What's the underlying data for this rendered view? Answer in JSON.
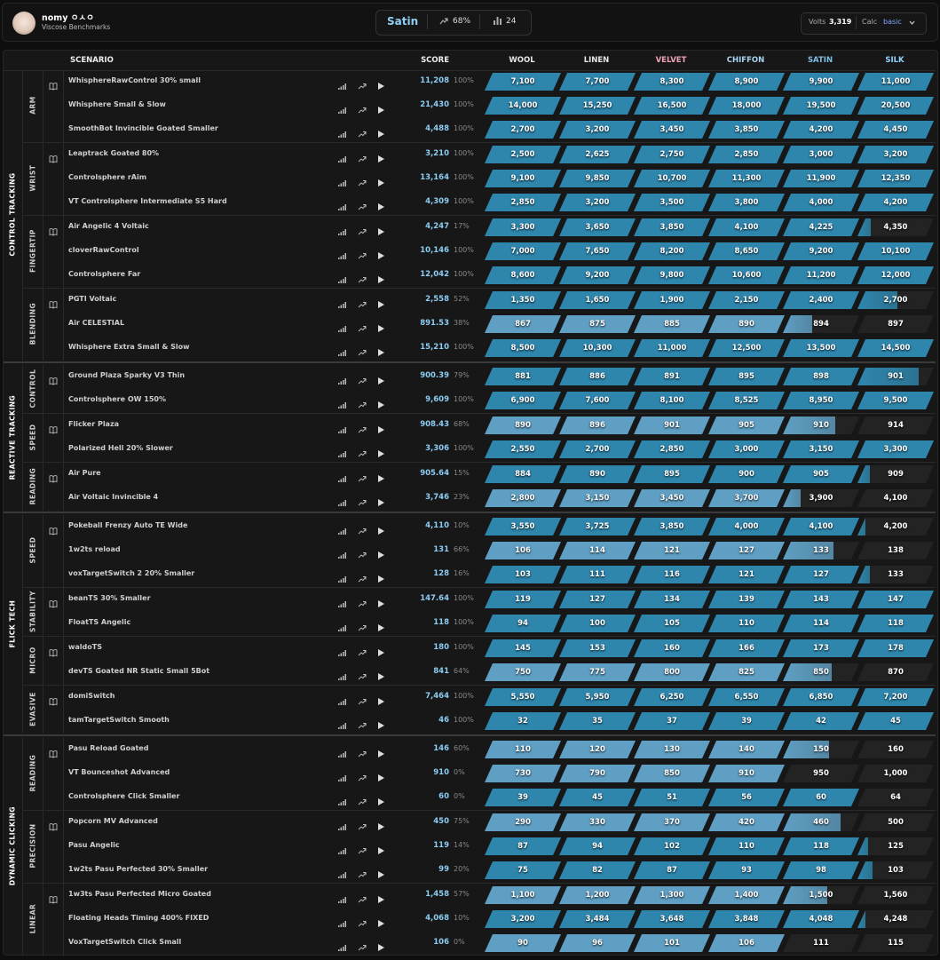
{
  "header": {
    "user_name": "nomy ㅇㅅㅇ",
    "subtitle": "Viscose Benchmarks",
    "rank": "Satin",
    "progress": "68%",
    "count": "24",
    "volts_label": "Volts",
    "volts": "3,319",
    "calc_label": "Calc",
    "calc": "basic"
  },
  "table": {
    "columns": {
      "scenario": "SCENARIO",
      "score": "SCORE"
    },
    "ranks": [
      {
        "name": "WOOL",
        "color": "#e8e8e8"
      },
      {
        "name": "LINEN",
        "color": "#e8e8e8"
      },
      {
        "name": "VELVET",
        "color": "#f0a3b4"
      },
      {
        "name": "CHIFFON",
        "color": "#a9d6f2"
      },
      {
        "name": "SATIN",
        "color": "#7fbde6"
      },
      {
        "name": "SILK",
        "color": "#93d4ff"
      }
    ],
    "cell_colors": [
      "#5f9fc3",
      "#5f9fc3",
      "#5f9fc3",
      "#5f9fc3",
      "#2e86ad",
      "#2e86ad"
    ],
    "categories": [
      {
        "name": "CONTROL TRACKING",
        "groups": [
          {
            "name": "ARM",
            "rows": [
              {
                "name": "WhisphereRawControl 30% small",
                "score": "11,208",
                "progress": "100%",
                "thresholds": [
                  "7,100",
                  "7,700",
                  "8,300",
                  "8,900",
                  "9,900",
                  "11,000"
                ]
              },
              {
                "name": "Whisphere Small & Slow",
                "score": "21,430",
                "progress": "100%",
                "thresholds": [
                  "14,000",
                  "15,250",
                  "16,500",
                  "18,000",
                  "19,500",
                  "20,500"
                ]
              },
              {
                "name": "SmoothBot Invincible Goated Smaller",
                "score": "4,488",
                "progress": "100%",
                "thresholds": [
                  "2,700",
                  "3,200",
                  "3,450",
                  "3,850",
                  "4,200",
                  "4,450"
                ]
              }
            ]
          },
          {
            "name": "WRIST",
            "rows": [
              {
                "name": "Leaptrack Goated 80%",
                "score": "3,210",
                "progress": "100%",
                "thresholds": [
                  "2,500",
                  "2,625",
                  "2,750",
                  "2,850",
                  "3,000",
                  "3,200"
                ]
              },
              {
                "name": "Controlsphere rAim",
                "score": "13,164",
                "progress": "100%",
                "thresholds": [
                  "9,100",
                  "9,850",
                  "10,700",
                  "11,300",
                  "11,900",
                  "12,350"
                ]
              },
              {
                "name": "VT Controlsphere Intermediate S5 Hard",
                "score": "4,309",
                "progress": "100%",
                "thresholds": [
                  "2,850",
                  "3,200",
                  "3,500",
                  "3,800",
                  "4,000",
                  "4,200"
                ]
              }
            ]
          },
          {
            "name": "FINGERTIP",
            "rows": [
              {
                "name": "Air Angelic 4 Voltaic",
                "score": "4,247",
                "progress": "17%",
                "thresholds": [
                  "3,300",
                  "3,650",
                  "3,850",
                  "4,100",
                  "4,225",
                  "4,350"
                ]
              },
              {
                "name": "cloverRawControl",
                "score": "10,146",
                "progress": "100%",
                "thresholds": [
                  "7,000",
                  "7,650",
                  "8,200",
                  "8,650",
                  "9,200",
                  "10,100"
                ]
              },
              {
                "name": "Controlsphere Far",
                "score": "12,042",
                "progress": "100%",
                "thresholds": [
                  "8,600",
                  "9,200",
                  "9,800",
                  "10,600",
                  "11,200",
                  "12,000"
                ]
              }
            ]
          },
          {
            "name": "BLENDING",
            "rows": [
              {
                "name": "PGTI Voltaic",
                "score": "2,558",
                "progress": "52%",
                "thresholds": [
                  "1,350",
                  "1,650",
                  "1,900",
                  "2,150",
                  "2,400",
                  "2,700"
                ]
              },
              {
                "name": "Air CELESTIAL",
                "score": "891.53",
                "progress": "38%",
                "thresholds": [
                  "867",
                  "875",
                  "885",
                  "890",
                  "894",
                  "897"
                ]
              },
              {
                "name": "Whisphere Extra Small & Slow",
                "score": "15,210",
                "progress": "100%",
                "thresholds": [
                  "8,500",
                  "10,300",
                  "11,000",
                  "12,500",
                  "13,500",
                  "14,500"
                ]
              }
            ]
          }
        ]
      },
      {
        "name": "REACTIVE TRACKING",
        "groups": [
          {
            "name": "CONTROL",
            "rows": [
              {
                "name": "Ground Plaza Sparky V3 Thin",
                "score": "900.39",
                "progress": "79%",
                "thresholds": [
                  "881",
                  "886",
                  "891",
                  "895",
                  "898",
                  "901"
                ]
              },
              {
                "name": "Controlsphere OW 150%",
                "score": "9,609",
                "progress": "100%",
                "thresholds": [
                  "6,900",
                  "7,600",
                  "8,100",
                  "8,525",
                  "8,950",
                  "9,500"
                ]
              }
            ]
          },
          {
            "name": "SPEED",
            "rows": [
              {
                "name": "Flicker Plaza",
                "score": "908.43",
                "progress": "68%",
                "thresholds": [
                  "890",
                  "896",
                  "901",
                  "905",
                  "910",
                  "914"
                ]
              },
              {
                "name": "Polarized Hell 20% Slower",
                "score": "3,306",
                "progress": "100%",
                "thresholds": [
                  "2,550",
                  "2,700",
                  "2,850",
                  "3,000",
                  "3,150",
                  "3,300"
                ]
              }
            ]
          },
          {
            "name": "READING",
            "rows": [
              {
                "name": "Air Pure",
                "score": "905.64",
                "progress": "15%",
                "thresholds": [
                  "884",
                  "890",
                  "895",
                  "900",
                  "905",
                  "909"
                ]
              },
              {
                "name": "Air Voltaic Invincible 4",
                "score": "3,746",
                "progress": "23%",
                "thresholds": [
                  "2,800",
                  "3,150",
                  "3,450",
                  "3,700",
                  "3,900",
                  "4,100"
                ]
              }
            ]
          }
        ]
      },
      {
        "name": "FLICK TECH",
        "groups": [
          {
            "name": "SPEED",
            "rows": [
              {
                "name": "Pokeball Frenzy Auto TE Wide",
                "score": "4,110",
                "progress": "10%",
                "thresholds": [
                  "3,550",
                  "3,725",
                  "3,850",
                  "4,000",
                  "4,100",
                  "4,200"
                ]
              },
              {
                "name": "1w2ts reload",
                "score": "131",
                "progress": "66%",
                "thresholds": [
                  "106",
                  "114",
                  "121",
                  "127",
                  "133",
                  "138"
                ]
              },
              {
                "name": "voxTargetSwitch 2 20% Smaller",
                "score": "128",
                "progress": "16%",
                "thresholds": [
                  "103",
                  "111",
                  "116",
                  "121",
                  "127",
                  "133"
                ]
              }
            ]
          },
          {
            "name": "STABILITY",
            "rows": [
              {
                "name": "beanTS 30% Smaller",
                "score": "147.64",
                "progress": "100%",
                "thresholds": [
                  "119",
                  "127",
                  "134",
                  "139",
                  "143",
                  "147"
                ]
              },
              {
                "name": "FloatTS Angelic",
                "score": "118",
                "progress": "100%",
                "thresholds": [
                  "94",
                  "100",
                  "105",
                  "110",
                  "114",
                  "118"
                ]
              }
            ]
          },
          {
            "name": "MICRO",
            "rows": [
              {
                "name": "waldoTS",
                "score": "180",
                "progress": "100%",
                "thresholds": [
                  "145",
                  "153",
                  "160",
                  "166",
                  "173",
                  "178"
                ]
              },
              {
                "name": "devTS Goated NR Static Small 5Bot",
                "score": "841",
                "progress": "64%",
                "thresholds": [
                  "750",
                  "775",
                  "800",
                  "825",
                  "850",
                  "870"
                ]
              }
            ]
          },
          {
            "name": "EVASIVE",
            "rows": [
              {
                "name": "domiSwitch",
                "score": "7,464",
                "progress": "100%",
                "thresholds": [
                  "5,550",
                  "5,950",
                  "6,250",
                  "6,550",
                  "6,850",
                  "7,200"
                ]
              },
              {
                "name": "tamTargetSwitch Smooth",
                "score": "46",
                "progress": "100%",
                "thresholds": [
                  "32",
                  "35",
                  "37",
                  "39",
                  "42",
                  "45"
                ]
              }
            ]
          }
        ]
      },
      {
        "name": "DYNAMIC CLICKING",
        "groups": [
          {
            "name": "READING",
            "rows": [
              {
                "name": "Pasu Reload Goated",
                "score": "146",
                "progress": "60%",
                "thresholds": [
                  "110",
                  "120",
                  "130",
                  "140",
                  "150",
                  "160"
                ]
              },
              {
                "name": "VT Bounceshot Advanced",
                "score": "910",
                "progress": "0%",
                "thresholds": [
                  "730",
                  "790",
                  "850",
                  "910",
                  "950",
                  "1,000"
                ]
              },
              {
                "name": "Controlsphere Click Smaller",
                "score": "60",
                "progress": "0%",
                "thresholds": [
                  "39",
                  "45",
                  "51",
                  "56",
                  "60",
                  "64"
                ]
              }
            ]
          },
          {
            "name": "PRECISION",
            "rows": [
              {
                "name": "Popcorn MV Advanced",
                "score": "450",
                "progress": "75%",
                "thresholds": [
                  "290",
                  "330",
                  "370",
                  "420",
                  "460",
                  "500"
                ]
              },
              {
                "name": "Pasu Angelic",
                "score": "119",
                "progress": "14%",
                "thresholds": [
                  "87",
                  "94",
                  "102",
                  "110",
                  "118",
                  "125"
                ]
              },
              {
                "name": "1w2ts Pasu Perfected 30% Smaller",
                "score": "99",
                "progress": "20%",
                "thresholds": [
                  "75",
                  "82",
                  "87",
                  "93",
                  "98",
                  "103"
                ]
              }
            ]
          },
          {
            "name": "LINEAR",
            "rows": [
              {
                "name": "1w3ts Pasu Perfected Micro Goated",
                "score": "1,458",
                "progress": "57%",
                "thresholds": [
                  "1,100",
                  "1,200",
                  "1,300",
                  "1,400",
                  "1,500",
                  "1,560"
                ]
              },
              {
                "name": "Floating Heads Timing 400% FIXED",
                "score": "4,068",
                "progress": "10%",
                "thresholds": [
                  "3,200",
                  "3,484",
                  "3,648",
                  "3,848",
                  "4,048",
                  "4,248"
                ]
              },
              {
                "name": "VoxTargetSwitch Click Small",
                "score": "106",
                "progress": "0%",
                "thresholds": [
                  "90",
                  "96",
                  "101",
                  "106",
                  "111",
                  "115"
                ]
              }
            ]
          }
        ]
      }
    ]
  }
}
